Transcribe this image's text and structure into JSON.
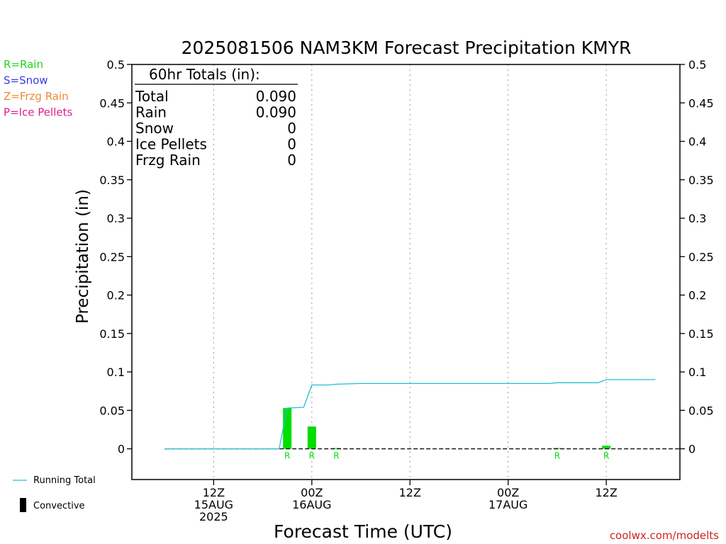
{
  "chart_data": {
    "type": "bar",
    "title": "2025081506 NAM3KM Forecast Precipitation KMYR",
    "xlabel": "Forecast Time (UTC)",
    "ylabel": "Precipitation (in)",
    "ylim": [
      -0.04,
      0.5
    ],
    "yticks": [
      0,
      0.05,
      0.1,
      0.15,
      0.2,
      0.25,
      0.3,
      0.35,
      0.4,
      0.45,
      0.5
    ],
    "ytick_labels": [
      "0",
      "0.05",
      "0.1",
      "0.15",
      "0.2",
      "0.25",
      "0.3",
      "0.35",
      "0.4",
      "0.45",
      "0.5"
    ],
    "xlim_hours": [
      -4,
      63
    ],
    "x_ticks": [
      {
        "hour": 6,
        "lines": [
          "12Z",
          "15AUG",
          "2025"
        ]
      },
      {
        "hour": 18,
        "lines": [
          "00Z",
          "16AUG"
        ]
      },
      {
        "hour": 30,
        "lines": [
          "12Z"
        ]
      },
      {
        "hour": 42,
        "lines": [
          "00Z",
          "17AUG"
        ]
      },
      {
        "hour": 54,
        "lines": [
          "12Z"
        ]
      }
    ],
    "grid": "vertical dotted",
    "precip_bars": [
      {
        "hour": 15,
        "value": 0.053,
        "type": "R"
      },
      {
        "hour": 18,
        "value": 0.029,
        "type": "R"
      },
      {
        "hour": 21,
        "value": 0.001,
        "type": "R"
      },
      {
        "hour": 48,
        "value": 0.001,
        "type": "R"
      },
      {
        "hour": 54,
        "value": 0.004,
        "type": "R"
      }
    ],
    "running_total": {
      "hours": [
        0,
        14,
        15,
        17,
        18,
        20,
        21,
        24,
        47,
        48,
        53,
        54,
        60
      ],
      "values": [
        0,
        0,
        0.053,
        0.054,
        0.083,
        0.083,
        0.084,
        0.085,
        0.085,
        0.086,
        0.086,
        0.09,
        0.09
      ]
    },
    "totals": {
      "heading": "60hr Totals (in):",
      "rows": [
        {
          "label": "Total",
          "value": "0.090"
        },
        {
          "label": "Rain",
          "value": "0.090"
        },
        {
          "label": "Snow",
          "value": "0"
        },
        {
          "label": "Ice Pellets",
          "value": "0"
        },
        {
          "label": "Frzg Rain",
          "value": "0"
        }
      ]
    },
    "type_legend": [
      {
        "text": "R=Rain",
        "color": "#22d322"
      },
      {
        "text": "S=Snow",
        "color": "#3a3ae6"
      },
      {
        "text": "Z=Frzg Rain",
        "color": "#ee8833"
      },
      {
        "text": "P=Ice Pellets",
        "color": "#e0208a"
      }
    ],
    "series_legend": [
      {
        "name": "Running Total",
        "color": "#20c0d0"
      },
      {
        "name": "Convective",
        "color": "#000000"
      }
    ],
    "colors": {
      "rain_bar": "#00dd00",
      "running_total": "#20c0d0",
      "axis": "#000000",
      "grid": "#999999"
    },
    "watermark": "coolwx.com/modelts"
  }
}
